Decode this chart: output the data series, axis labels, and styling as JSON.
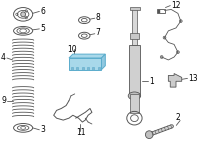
{
  "bg_color": "#ffffff",
  "highlight_color": "#a8d8ea",
  "highlight_stroke": "#5aaccc",
  "line_color": "#555555",
  "label_color": "#000000",
  "label_fontsize": 5.5,
  "fig_width": 2.0,
  "fig_height": 1.47,
  "dpi": 100
}
